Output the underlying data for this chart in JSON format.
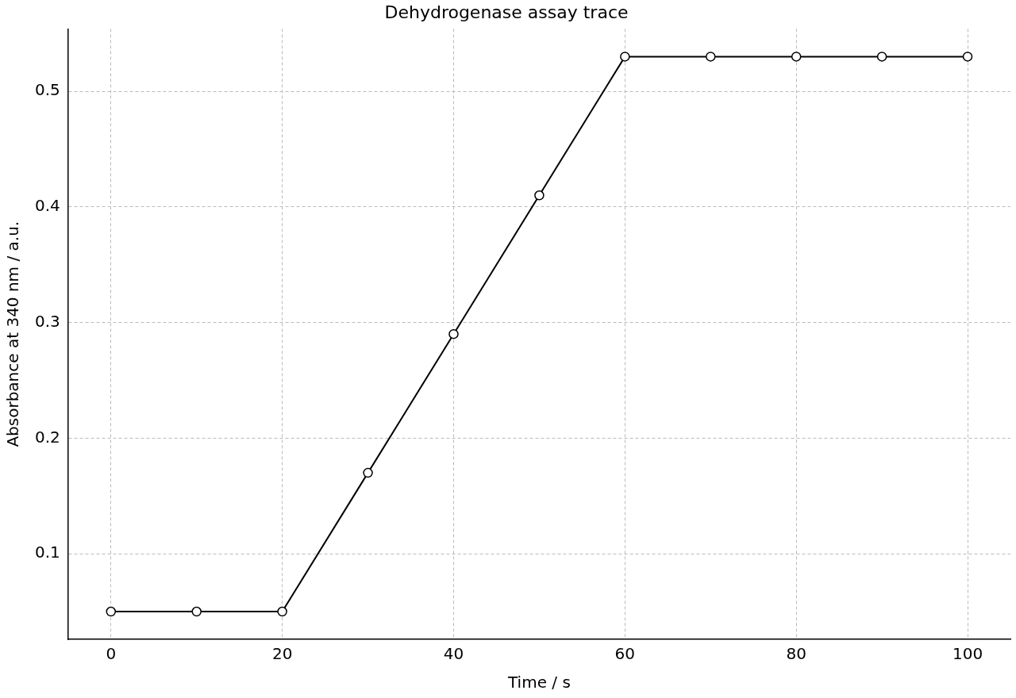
{
  "chart_data": {
    "type": "line",
    "title": "Dehydrogenase assay trace",
    "xlabel": "Time / s",
    "ylabel": "Absorbance at 340 nm / a.u.",
    "x": [
      0,
      10,
      20,
      30,
      40,
      50,
      60,
      70,
      80,
      90,
      100
    ],
    "series": [
      {
        "color": "#000000",
        "values": [
          0.05,
          0.05,
          0.05,
          0.17,
          0.29,
          0.41,
          0.53,
          0.53,
          0.53,
          0.53,
          0.53
        ]
      }
    ],
    "xlim": [
      -5,
      105
    ],
    "xticks": [
      0,
      20,
      40,
      60,
      80,
      100
    ],
    "ylim": [
      0.026,
      0.554
    ],
    "yticks": [
      0.1,
      0.2,
      0.3,
      0.4,
      0.5
    ],
    "grid": true,
    "legend": false,
    "marker": "circle",
    "line_style": "solid"
  }
}
